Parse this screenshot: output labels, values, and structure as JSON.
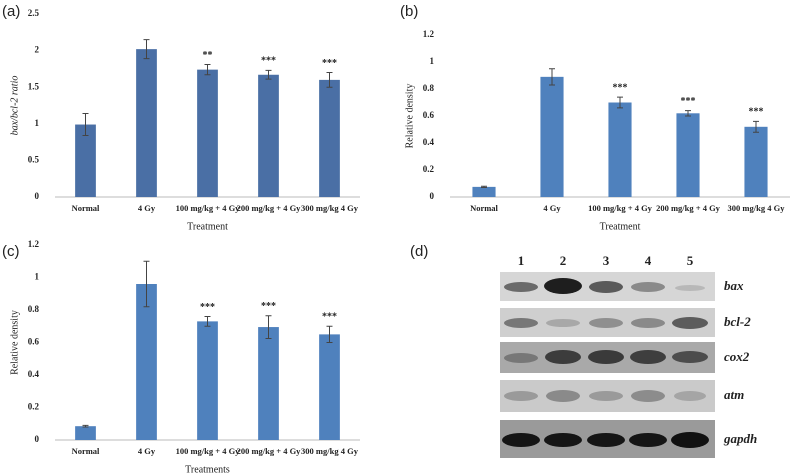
{
  "chart_data": [
    {
      "type": "bar",
      "panel_label": "(a)",
      "y_label": "bax/bcl-2 ratio",
      "x_label": "Treatment",
      "categories": [
        "Normal",
        "4 Gy",
        "100 mg/kg + 4 Gy",
        "200 mg/kg + 4 Gy",
        "300 mg/kg 4 Gy"
      ],
      "values": [
        0.99,
        2.02,
        1.74,
        1.67,
        1.6
      ],
      "errors": [
        0.15,
        0.13,
        0.07,
        0.06,
        0.1
      ],
      "annotations": [
        null,
        null,
        "**",
        "***",
        "***"
      ],
      "color": "#4a6fa5",
      "ylim": [
        0,
        2.5
      ],
      "yticks": [
        0,
        0.5,
        1,
        1.5,
        2,
        2.5
      ]
    },
    {
      "type": "bar",
      "panel_label": "(b)",
      "y_label": "Relative density",
      "x_label": "Treatment",
      "categories": [
        "Normal",
        "4 Gy",
        "100 mg/kg + 4 Gy",
        "200 mg/kg + 4 Gy",
        "300 mg/kg 4 Gy"
      ],
      "values": [
        0.075,
        0.89,
        0.7,
        0.62,
        0.52
      ],
      "errors": [
        0.005,
        0.06,
        0.04,
        0.02,
        0.04
      ],
      "annotations": [
        null,
        null,
        "***",
        "***",
        "***"
      ],
      "color": "#4f81bd",
      "ylim": [
        0,
        1.2
      ],
      "yticks": [
        0,
        0.2,
        0.4,
        0.6,
        0.8,
        1,
        1.2
      ]
    },
    {
      "type": "bar",
      "panel_label": "(c)",
      "y_label": "Relative density",
      "x_label": "Treatments",
      "categories": [
        "Normal",
        "4 Gy",
        "100 mg/kg + 4 Gy",
        "200 mg/kg + 4 Gy",
        "300 mg/kg 4 Gy"
      ],
      "values": [
        0.085,
        0.96,
        0.73,
        0.695,
        0.65
      ],
      "errors": [
        0.005,
        0.14,
        0.03,
        0.07,
        0.05
      ],
      "annotations": [
        null,
        null,
        "***",
        "***",
        "***"
      ],
      "color": "#4f81bd",
      "ylim": [
        0,
        1.2
      ],
      "yticks": [
        0,
        0.2,
        0.4,
        0.6,
        0.8,
        1,
        1.2
      ]
    }
  ],
  "gel": {
    "panel_label": "(d)",
    "lanes": [
      "1",
      "2",
      "3",
      "4",
      "5"
    ],
    "genes": [
      "bax",
      "bcl-2",
      "cox2",
      "atm",
      "gapdh"
    ]
  }
}
